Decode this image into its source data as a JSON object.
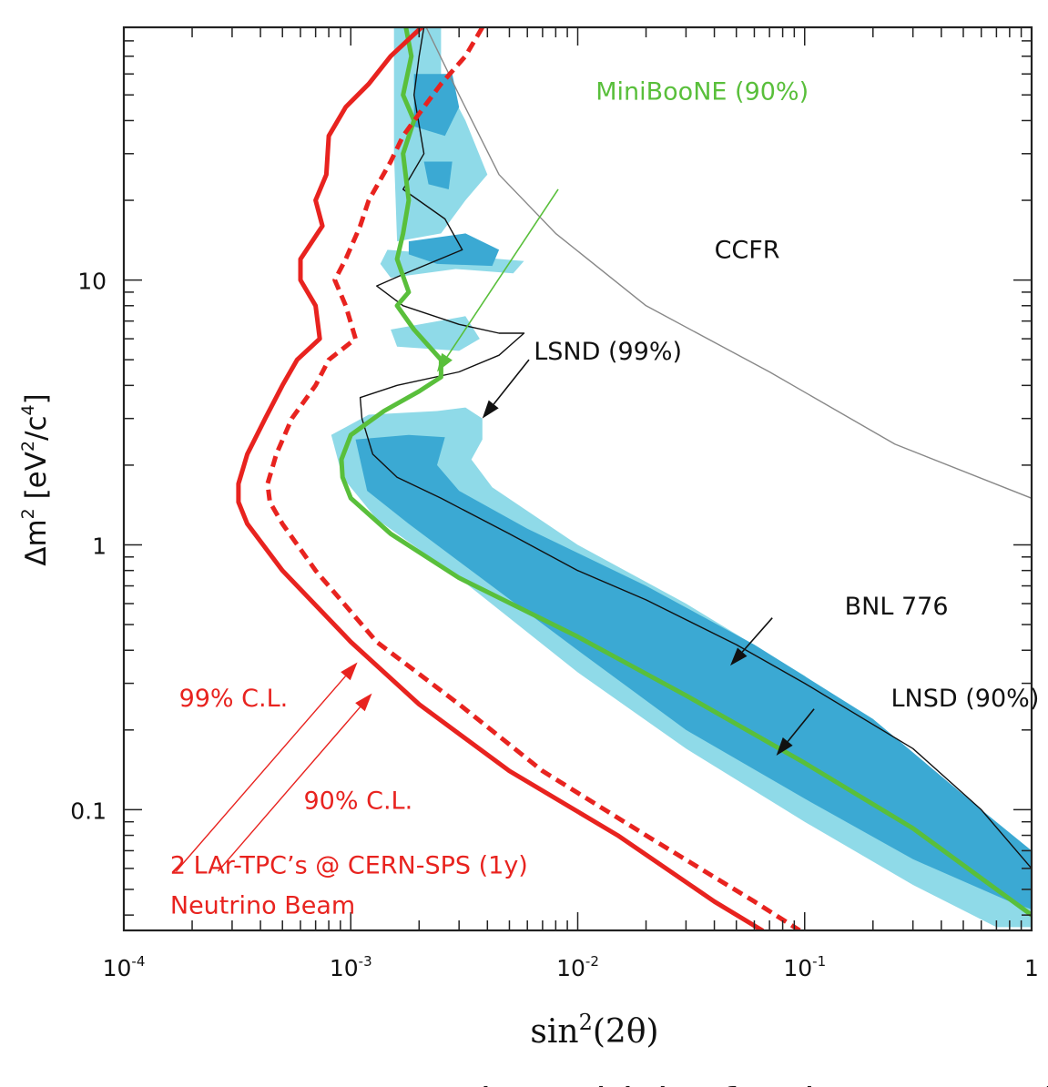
{
  "chart_data": {
    "type": "line",
    "x_scale": "log",
    "y_scale": "log",
    "xlim": [
      0.0001,
      1
    ],
    "ylim": [
      0.035,
      90
    ],
    "xlabel_base": "sin",
    "xlabel_sup": "2",
    "xlabel_arg": "(2θ)",
    "ylabel_main": "Δm",
    "ylabel_sup1": "2",
    "ylabel_mid": " [eV",
    "ylabel_sup2": "2",
    "ylabel_slash": "/c",
    "ylabel_sup3": "4",
    "ylabel_end": "]",
    "x_ticks": [
      {
        "base": "10",
        "exp": "-4",
        "value": 0.0001
      },
      {
        "base": "10",
        "exp": "-3",
        "value": 0.001
      },
      {
        "base": "10",
        "exp": "-2",
        "value": 0.01
      },
      {
        "base": "10",
        "exp": "-1",
        "value": 0.1
      },
      {
        "base": "1",
        "exp": "",
        "value": 1
      }
    ],
    "y_ticks": [
      {
        "label": "0.1",
        "value": 0.1
      },
      {
        "label": "1",
        "value": 1
      },
      {
        "label": "10",
        "value": 10
      }
    ],
    "colors": {
      "lsnd99": "#8fdae8",
      "lsnd90": "#3ba9d3",
      "lar": "#e8231f",
      "miniboone": "#59bf3b",
      "ccfr": "#888888",
      "bnl": "#111111"
    },
    "regions": [
      {
        "name": "LSND (99%)",
        "color_key": "lsnd99",
        "polygons": [
          [
            [
              0.00082,
              2.6
            ],
            [
              0.0012,
              3.1
            ],
            [
              0.0024,
              3.2
            ],
            [
              0.0032,
              3.3
            ],
            [
              0.0038,
              3.0
            ],
            [
              0.0038,
              2.5
            ],
            [
              0.0034,
              2.1
            ],
            [
              0.0042,
              1.65
            ],
            [
              0.01,
              1.0
            ],
            [
              0.03,
              0.6
            ],
            [
              0.1,
              0.32
            ],
            [
              0.3,
              0.15
            ],
            [
              1,
              0.06
            ],
            [
              1,
              0.036
            ],
            [
              0.7,
              0.036
            ],
            [
              0.3,
              0.052
            ],
            [
              0.1,
              0.09
            ],
            [
              0.03,
              0.17
            ],
            [
              0.01,
              0.33
            ],
            [
              0.003,
              0.75
            ],
            [
              0.0013,
              1.25
            ],
            [
              0.00092,
              1.8
            ]
          ],
          [
            [
              0.0015,
              6.5
            ],
            [
              0.0032,
              7.3
            ],
            [
              0.0037,
              6.0
            ],
            [
              0.003,
              5.4
            ],
            [
              0.0016,
              5.6
            ]
          ],
          [
            [
              0.00145,
              13
            ],
            [
              0.0032,
              12.3
            ],
            [
              0.0058,
              11.8
            ],
            [
              0.0052,
              10.6
            ],
            [
              0.0029,
              11.0
            ],
            [
              0.0015,
              10.2
            ],
            [
              0.00135,
              11.5
            ]
          ],
          [
            [
              0.00155,
              90
            ],
            [
              0.0025,
              90
            ],
            [
              0.0025,
              60
            ],
            [
              0.0032,
              40
            ],
            [
              0.004,
              25
            ],
            [
              0.0032,
              20
            ],
            [
              0.0025,
              15
            ],
            [
              0.0016,
              14
            ],
            [
              0.00155,
              30
            ]
          ]
        ]
      },
      {
        "name": "LSND (90%)",
        "color_key": "lsnd90",
        "polygons": [
          [
            [
              0.00105,
              2.5
            ],
            [
              0.0018,
              2.6
            ],
            [
              0.0026,
              2.55
            ],
            [
              0.0024,
              2.0
            ],
            [
              0.003,
              1.6
            ],
            [
              0.006,
              1.15
            ],
            [
              0.02,
              0.7
            ],
            [
              0.06,
              0.42
            ],
            [
              0.2,
              0.22
            ],
            [
              0.6,
              0.1
            ],
            [
              1,
              0.07
            ],
            [
              1,
              0.042
            ],
            [
              0.8,
              0.045
            ],
            [
              0.3,
              0.065
            ],
            [
              0.1,
              0.11
            ],
            [
              0.03,
              0.2
            ],
            [
              0.01,
              0.4
            ],
            [
              0.004,
              0.72
            ],
            [
              0.0018,
              1.2
            ],
            [
              0.00118,
              1.6
            ]
          ],
          [
            [
              0.0018,
              14
            ],
            [
              0.0032,
              15
            ],
            [
              0.0045,
              13
            ],
            [
              0.0042,
              11.3
            ],
            [
              0.0024,
              11.5
            ],
            [
              0.0018,
              12.5
            ]
          ],
          [
            [
              0.0019,
              60
            ],
            [
              0.0028,
              60
            ],
            [
              0.003,
              45
            ],
            [
              0.0026,
              35
            ],
            [
              0.0019,
              38
            ]
          ],
          [
            [
              0.0021,
              28
            ],
            [
              0.0028,
              28
            ],
            [
              0.0027,
              22
            ],
            [
              0.0022,
              23
            ]
          ]
        ]
      }
    ],
    "series": [
      {
        "name": "CCFR",
        "color_key": "ccfr",
        "width": 1.4,
        "dash": "",
        "points": [
          [
            0.00215,
            90
          ],
          [
            0.003,
            50
          ],
          [
            0.0045,
            25
          ],
          [
            0.008,
            15
          ],
          [
            0.02,
            8
          ],
          [
            0.07,
            4.5
          ],
          [
            0.25,
            2.4
          ],
          [
            1,
            1.5
          ]
        ]
      },
      {
        "name": "BNL 776",
        "color_key": "bnl",
        "width": 1.4,
        "dash": "",
        "points": [
          [
            0.0021,
            90
          ],
          [
            0.002,
            70
          ],
          [
            0.0019,
            50
          ],
          [
            0.0021,
            30
          ],
          [
            0.0017,
            22
          ],
          [
            0.0026,
            17
          ],
          [
            0.0031,
            13
          ],
          [
            0.0017,
            10.5
          ],
          [
            0.0013,
            9.5
          ],
          [
            0.0017,
            8
          ],
          [
            0.003,
            6.8
          ],
          [
            0.0045,
            6.3
          ],
          [
            0.0058,
            6.3
          ],
          [
            0.0045,
            5.2
          ],
          [
            0.003,
            4.5
          ],
          [
            0.0016,
            4.0
          ],
          [
            0.0011,
            3.6
          ],
          [
            0.00112,
            3.0
          ],
          [
            0.00125,
            2.2
          ],
          [
            0.0016,
            1.8
          ],
          [
            0.0025,
            1.5
          ],
          [
            0.005,
            1.1
          ],
          [
            0.01,
            0.8
          ],
          [
            0.02,
            0.62
          ],
          [
            0.05,
            0.42
          ],
          [
            0.1,
            0.3
          ],
          [
            0.3,
            0.17
          ],
          [
            0.6,
            0.1
          ],
          [
            1,
            0.06
          ]
        ]
      },
      {
        "name": "MiniBooNE (90%)",
        "color_key": "miniboone",
        "width": 5,
        "dash": "",
        "points": [
          [
            0.00175,
            90
          ],
          [
            0.00185,
            70
          ],
          [
            0.0017,
            50
          ],
          [
            0.0019,
            40
          ],
          [
            0.0017,
            30
          ],
          [
            0.0018,
            20
          ],
          [
            0.0017,
            15
          ],
          [
            0.0016,
            12
          ],
          [
            0.0018,
            9
          ],
          [
            0.0016,
            8
          ],
          [
            0.0019,
            6.5
          ],
          [
            0.0025,
            5
          ],
          [
            0.0025,
            4.3
          ],
          [
            0.002,
            3.8
          ],
          [
            0.0014,
            3.2
          ],
          [
            0.001,
            2.6
          ],
          [
            0.00091,
            2.1
          ],
          [
            0.00092,
            1.8
          ],
          [
            0.001,
            1.5
          ],
          [
            0.0015,
            1.1
          ],
          [
            0.003,
            0.75
          ],
          [
            0.01,
            0.45
          ],
          [
            0.03,
            0.27
          ],
          [
            0.1,
            0.15
          ],
          [
            0.3,
            0.085
          ],
          [
            1,
            0.04
          ]
        ]
      },
      {
        "name": "99% C.L.",
        "color_key": "lar",
        "width": 5,
        "dash": "",
        "points": [
          [
            0.00205,
            90
          ],
          [
            0.0015,
            70
          ],
          [
            0.0012,
            55
          ],
          [
            0.00095,
            45
          ],
          [
            0.0008,
            35
          ],
          [
            0.00078,
            25
          ],
          [
            0.0007,
            20
          ],
          [
            0.00075,
            16
          ],
          [
            0.0006,
            12
          ],
          [
            0.0006,
            10
          ],
          [
            0.0007,
            8
          ],
          [
            0.00073,
            6
          ],
          [
            0.00058,
            5
          ],
          [
            0.0005,
            4
          ],
          [
            0.00042,
            3
          ],
          [
            0.00035,
            2.2
          ],
          [
            0.00032,
            1.7
          ],
          [
            0.00032,
            1.45
          ],
          [
            0.00035,
            1.2
          ],
          [
            0.0005,
            0.8
          ],
          [
            0.001,
            0.43
          ],
          [
            0.002,
            0.25
          ],
          [
            0.005,
            0.14
          ],
          [
            0.015,
            0.08
          ],
          [
            0.04,
            0.045
          ],
          [
            0.065,
            0.035
          ]
        ]
      },
      {
        "name": "90% C.L.",
        "color_key": "lar",
        "width": 5,
        "dash": "12 7",
        "points": [
          [
            0.0038,
            90
          ],
          [
            0.0032,
            70
          ],
          [
            0.0025,
            55
          ],
          [
            0.0021,
            45
          ],
          [
            0.0017,
            35
          ],
          [
            0.0015,
            28
          ],
          [
            0.0012,
            20
          ],
          [
            0.0011,
            16
          ],
          [
            0.00095,
            12
          ],
          [
            0.00085,
            10
          ],
          [
            0.00095,
            8
          ],
          [
            0.00105,
            6
          ],
          [
            0.0008,
            5
          ],
          [
            0.0007,
            4
          ],
          [
            0.00055,
            3
          ],
          [
            0.00047,
            2.2
          ],
          [
            0.00043,
            1.7
          ],
          [
            0.00044,
            1.45
          ],
          [
            0.0005,
            1.2
          ],
          [
            0.0007,
            0.8
          ],
          [
            0.0013,
            0.43
          ],
          [
            0.003,
            0.25
          ],
          [
            0.007,
            0.14
          ],
          [
            0.02,
            0.08
          ],
          [
            0.06,
            0.045
          ],
          [
            0.095,
            0.035
          ]
        ]
      }
    ],
    "annotations": [
      {
        "id": "miniboone-label",
        "text": "MiniBooNE (90%)",
        "color_key": "miniboone",
        "at": [
          0.012,
          48
        ],
        "anchor": "start"
      },
      {
        "id": "ccfr-label",
        "text": "CCFR",
        "color_key": "bnl",
        "at": [
          0.04,
          12.1
        ],
        "anchor": "start"
      },
      {
        "id": "lsnd99-label",
        "text": "LSND (99%)",
        "color_key": "bnl",
        "at": [
          0.0064,
          5.0
        ],
        "anchor": "start"
      },
      {
        "id": "bnl-label",
        "text": "BNL 776",
        "color_key": "bnl",
        "at": [
          0.15,
          0.545
        ],
        "anchor": "start"
      },
      {
        "id": "lnsd90-label",
        "text": "LNSD (90%)",
        "color_key": "bnl",
        "at": [
          0.24,
          0.245
        ],
        "anchor": "start"
      },
      {
        "id": "cl99-label",
        "text": "99% C.L.",
        "color_key": "lar",
        "at": [
          0.000175,
          0.245
        ],
        "anchor": "start"
      },
      {
        "id": "cl90-label",
        "text": "90% C.L.",
        "color_key": "lar",
        "at": [
          0.00062,
          0.1005
        ],
        "anchor": "start"
      },
      {
        "id": "lar-label-1",
        "text": "2 LAr-TPC’s @ CERN-SPS (1y)",
        "color_key": "lar",
        "at": [
          0.00016,
          0.0575
        ],
        "anchor": "start"
      },
      {
        "id": "lar-label-2",
        "text": "Neutrino Beam",
        "color_key": "lar",
        "at": [
          0.00016,
          0.0405
        ],
        "anchor": "start"
      }
    ],
    "arrows": [
      {
        "name": "miniboone-arrow",
        "color_key": "miniboone",
        "width": 1.6,
        "from": [
          0.0082,
          22
        ],
        "to": [
          0.0024,
          4.5
        ]
      },
      {
        "name": "lsnd99-arrow",
        "color_key": "bnl",
        "width": 1.6,
        "from": [
          0.0061,
          5.0
        ],
        "to": [
          0.0038,
          3.0
        ]
      },
      {
        "name": "bnl-arrow",
        "color_key": "bnl",
        "width": 1.6,
        "from": [
          0.072,
          0.53
        ],
        "to": [
          0.047,
          0.35
        ]
      },
      {
        "name": "lnsd90-arrow",
        "color_key": "bnl",
        "width": 1.6,
        "from": [
          0.11,
          0.24
        ],
        "to": [
          0.075,
          0.16
        ]
      },
      {
        "name": "cl99-arrow",
        "color_key": "lar",
        "width": 1.4,
        "from": [
          0.00017,
          0.0585
        ],
        "to": [
          0.00107,
          0.36
        ]
      },
      {
        "name": "cl90-arrow",
        "color_key": "lar",
        "width": 1.4,
        "from": [
          0.00026,
          0.0585
        ],
        "to": [
          0.00124,
          0.275
        ]
      }
    ]
  },
  "caption": "Expected sensitivity for the proposed"
}
